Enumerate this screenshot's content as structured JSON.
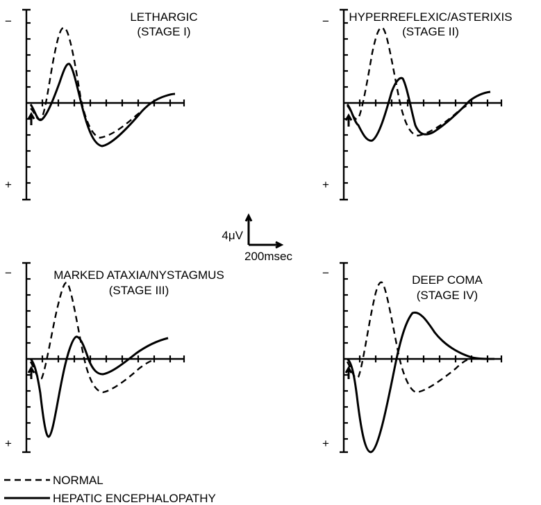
{
  "panels": [
    {
      "title_line1": "LETHARGIC",
      "title_line2": "(STAGE I)"
    },
    {
      "title_line1": "HYPERREFLEXIC/ASTERIXIS",
      "title_line2": "(STAGE II)"
    },
    {
      "title_line1": "MARKED ATAXIA/NYSTAGMUS",
      "title_line2": "(STAGE III)"
    },
    {
      "title_line1": "DEEP COMA",
      "title_line2": "(STAGE IV)"
    }
  ],
  "signs": {
    "minus": "−",
    "plus": "+"
  },
  "scale_bar": {
    "amplitude": "4μV",
    "time": "200msec"
  },
  "legend": [
    {
      "style": "dashed",
      "label": "NORMAL"
    },
    {
      "style": "solid",
      "label": "HEPATIC ENCEPHALOPATHY"
    }
  ]
}
